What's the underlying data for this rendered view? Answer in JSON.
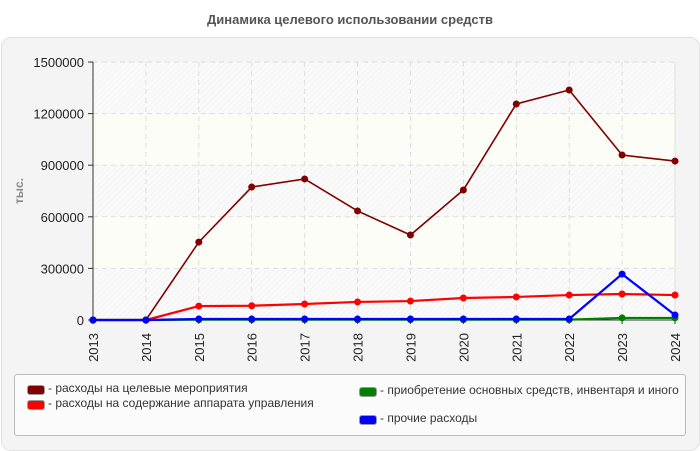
{
  "title": "Динамика целевого использовании средств",
  "chart_data": {
    "type": "line",
    "title": "Динамика целевого использовании средств",
    "xlabel": "",
    "ylabel": "тыс.",
    "ylim": [
      0,
      1500000
    ],
    "yticks": [
      "0",
      "300000",
      "600000",
      "900000",
      "1200000",
      "1500000"
    ],
    "categories": [
      "2013",
      "2014",
      "2015",
      "2016",
      "2017",
      "2018",
      "2019",
      "2020",
      "2021",
      "2022",
      "2023",
      "2024"
    ],
    "grid": true,
    "legend_position": "bottom",
    "series": [
      {
        "name": "расходы на целевые мероприятия",
        "color": "#800000",
        "values": [
          0,
          0,
          453000,
          773000,
          820000,
          634000,
          494000,
          756000,
          1256000,
          1337000,
          959000,
          924000
        ]
      },
      {
        "name": "расходы на содержание аппарата управления",
        "color": "#ff0000",
        "values": [
          0,
          0,
          81000,
          83000,
          93000,
          105000,
          110000,
          128000,
          134000,
          145000,
          151000,
          145000
        ]
      },
      {
        "name": "приобретение основных средств, инвентаря и иного",
        "color": "#008000",
        "values": [
          0,
          0,
          2000,
          2000,
          2000,
          2000,
          2000,
          2000,
          2000,
          2000,
          12000,
          12000
        ]
      },
      {
        "name": "прочие расходы",
        "color": "#0000ff",
        "values": [
          0,
          0,
          6000,
          6000,
          6000,
          6000,
          6000,
          6000,
          6000,
          6000,
          267000,
          29000
        ]
      }
    ]
  },
  "legend": {
    "items": [
      {
        "label": "- расходы на целевые мероприятия",
        "color": "#800000"
      },
      {
        "label": "- расходы на содержание аппарата управления",
        "color": "#ff0000"
      },
      {
        "label": "- приобретение основных средств, инвентаря и иного",
        "color": "#008000"
      },
      {
        "label": "- прочие расходы",
        "color": "#0000ff"
      }
    ]
  }
}
